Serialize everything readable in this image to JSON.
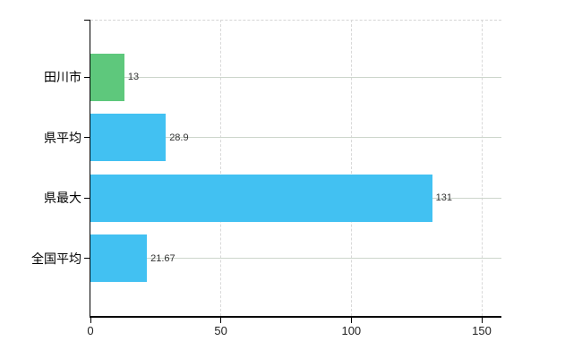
{
  "chart_data": {
    "type": "bar",
    "orientation": "horizontal",
    "title": "",
    "xlabel": "",
    "ylabel": "",
    "legend": "none",
    "categories": [
      "田川市",
      "県平均",
      "県最大",
      "全国平均"
    ],
    "values": [
      13,
      28.9,
      131,
      21.67
    ],
    "value_labels": [
      "13",
      "28.9",
      "131",
      "21.67"
    ],
    "bar_colors": [
      "#5ec87c",
      "#42c1f2",
      "#42c1f2",
      "#42c1f2"
    ],
    "x_ticks": [
      0,
      50,
      100,
      150
    ],
    "x_tick_labels": [
      "0",
      "50",
      "100",
      "150"
    ],
    "xlim": [
      0,
      157.5
    ],
    "grid": {
      "vertical": "dashed",
      "horizontal": "solid"
    }
  },
  "colors": {
    "background": "#ffffff",
    "bar_green": "#5ec87c",
    "bar_blue": "#42c1f2",
    "axis_line": "#000000",
    "grid_horizontal": "#ccd5cb",
    "grid_vertical": "#d9d9d9",
    "plot_top_border": "#d5d5d5",
    "value_label_text": "#333333",
    "tick_label_text": "#222222",
    "category_label_text": "#000000"
  }
}
